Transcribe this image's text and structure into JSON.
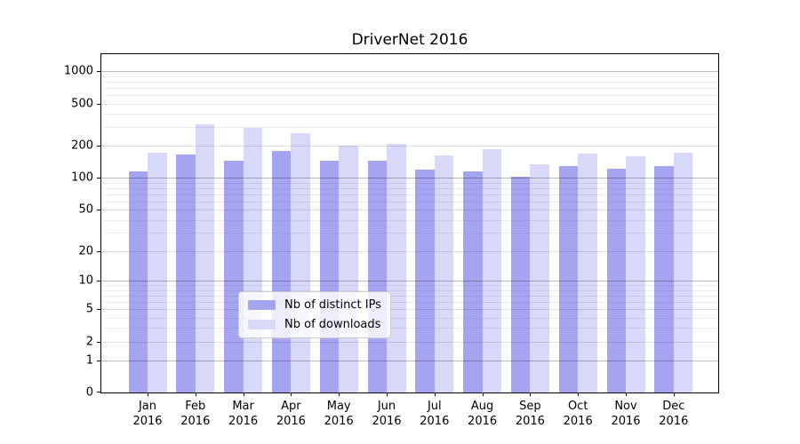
{
  "chart_data": {
    "type": "bar",
    "title": "DriverNet 2016",
    "categories": [
      "Jan 2016",
      "Feb 2016",
      "Mar 2016",
      "Apr 2016",
      "May 2016",
      "Jun 2016",
      "Jul 2016",
      "Aug 2016",
      "Sep 2016",
      "Oct 2016",
      "Nov 2016",
      "Dec 2016"
    ],
    "x_tick_labels": [
      [
        "Jan",
        "2016"
      ],
      [
        "Feb",
        "2016"
      ],
      [
        "Mar",
        "2016"
      ],
      [
        "Apr",
        "2016"
      ],
      [
        "May",
        "2016"
      ],
      [
        "Jun",
        "2016"
      ],
      [
        "Jul",
        "2016"
      ],
      [
        "Aug",
        "2016"
      ],
      [
        "Sep",
        "2016"
      ],
      [
        "Oct",
        "2016"
      ],
      [
        "Nov",
        "2016"
      ],
      [
        "Dec",
        "2016"
      ]
    ],
    "series": [
      {
        "name": "Nb of distinct IPs",
        "color": "#a4a4f0",
        "values": [
          115,
          165,
          145,
          178,
          145,
          145,
          120,
          115,
          103,
          129,
          122,
          130
        ]
      },
      {
        "name": "Nb of downloads",
        "color": "#d8d8f8",
        "values": [
          172,
          317,
          297,
          265,
          201,
          211,
          162,
          186,
          134,
          170,
          160,
          172
        ]
      }
    ],
    "xlabel": "",
    "ylabel": "",
    "y_axis": {
      "scale": "log1p",
      "ticks": [
        1000,
        500,
        200,
        100,
        50,
        20,
        10,
        5,
        2,
        1,
        0
      ],
      "decade_ticks": [
        1,
        10,
        100,
        1000
      ],
      "minor_ticks": [
        3,
        4,
        6,
        7,
        8,
        9,
        30,
        40,
        60,
        70,
        80,
        90,
        300,
        400,
        600,
        700,
        800,
        900
      ],
      "min": 0,
      "max": 1444
    },
    "grid": true,
    "grid_over_bars": true,
    "legend": {
      "position": "lower center",
      "entries": [
        "Nb of distinct IPs",
        "Nb of downloads"
      ]
    }
  },
  "colors": {
    "grid_major": "rgba(0,0,0,0.28)",
    "grid_labeled": "rgba(0,0,0,0.12)",
    "grid_minor": "rgba(0,0,0,0.07)",
    "spine": "#000000",
    "legend_border": "#cccccc"
  }
}
